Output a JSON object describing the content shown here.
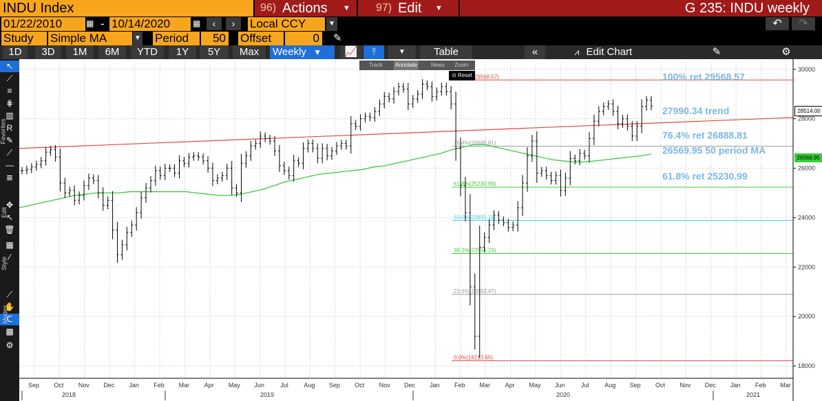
{
  "header": {
    "ticker": "INDU Index",
    "actions_num": "96)",
    "actions_label": "Actions",
    "edit_num": "97)",
    "edit_label": "Edit",
    "chart_id": "G 235: INDU weekly"
  },
  "range": {
    "start": "01/22/2010",
    "dash": "-",
    "end": "10/14/2020",
    "currency": "Local CCY"
  },
  "study": {
    "study_label": "Study",
    "study_value": "Simple MA",
    "period_label": "Period",
    "period_value": "50",
    "offset_label": "Offset",
    "offset_value": "0"
  },
  "periods": [
    "1D",
    "3D",
    "1M",
    "6M",
    "YTD",
    "1Y",
    "5Y",
    "Max"
  ],
  "frequency": "Weekly",
  "toolbar": {
    "table_label": "Table",
    "edit_chart_label": "Edit Chart"
  },
  "modes": {
    "track": "Track",
    "annotate": "Annotate",
    "news": "News",
    "zoom": "Zoom",
    "reset": "Reset"
  },
  "side_labels": {
    "favorites": "Favorites",
    "edit": "Edit",
    "style": "Style",
    "modes": "Modes"
  },
  "annotations": {
    "ret100": "100% ret 29568.57",
    "trend": "27990.34 trend",
    "ret764": "76.4% ret 26888.81",
    "ma": "26569.95 50 period MA",
    "ret618": "61.8% ret 25230.99"
  },
  "fib_labels": {
    "f100": "100.0%(29568.57)",
    "f764": "76.4%(26888.81)",
    "f618": "61.8%(25230.99)",
    "f50": "50.0%(23891.11)",
    "f382": "38.2%(22551.23)",
    "f236": "23.6%(20893.47)",
    "f0": "0.0%(18213.65)"
  },
  "price_tags": {
    "last": "28514.00",
    "ma": "26569.95"
  },
  "colors": {
    "orange": "#f7a51d",
    "red_bar": "#a01a1a",
    "blue_active": "#1e6fd8",
    "ma_line": "#3ccb3c",
    "trend_line": "#e0463c",
    "annotation": "#7ab8e6"
  },
  "chart_data": {
    "type": "bar",
    "ylim": [
      17500,
      30300
    ],
    "y_ticks": [
      18000,
      20000,
      22000,
      24000,
      26000,
      28000,
      30000
    ],
    "months": [
      "Sep",
      "Oct",
      "Nov",
      "Dec",
      "Jan",
      "Feb",
      "Mar",
      "Apr",
      "May",
      "Jun",
      "Jul",
      "Aug",
      "Sep",
      "Oct",
      "Nov",
      "Dec",
      "Jan",
      "Feb",
      "Mar",
      "Apr",
      "May",
      "Jun",
      "Jul",
      "Aug",
      "Sep",
      "Oct",
      "Nov",
      "Dec",
      "Jan",
      "Feb",
      "Mar"
    ],
    "years": [
      "2018",
      "2019",
      "2020",
      "2021"
    ],
    "fib_levels": [
      {
        "label": "100.0%",
        "value": 29568.57,
        "color": "#e0463c"
      },
      {
        "label": "76.4%",
        "value": 26888.81,
        "color": "#999999"
      },
      {
        "label": "61.8%",
        "value": 25230.99,
        "color": "#3ccb3c"
      },
      {
        "label": "50.0%",
        "value": 23891.11,
        "color": "#40d0e0"
      },
      {
        "label": "38.2%",
        "value": 22551.23,
        "color": "#3ccb3c"
      },
      {
        "label": "23.6%",
        "value": 20893.47,
        "color": "#999999"
      },
      {
        "label": "0.0%",
        "value": 18213.65,
        "color": "#e0463c"
      }
    ],
    "trend_line": {
      "start": 26800,
      "end": 28050
    },
    "last_price": 28514.0,
    "ma_value": 26569.95,
    "weekly_closes": [
      25900,
      25950,
      26050,
      26150,
      26300,
      26650,
      26750,
      26450,
      25400,
      25000,
      25100,
      24700,
      24900,
      25300,
      25600,
      25500,
      25000,
      24500,
      24700,
      23500,
      22500,
      22900,
      23400,
      23700,
      24200,
      24800,
      25200,
      25500,
      25900,
      25700,
      26000,
      26000,
      25800,
      26300,
      26200,
      26450,
      26500,
      26450,
      26300,
      26000,
      25500,
      25600,
      25700,
      26000,
      25200,
      25000,
      26200,
      26500,
      26900,
      27000,
      27300,
      27200,
      27100,
      26700,
      26100,
      25900,
      25700,
      26300,
      26200,
      26800,
      27000,
      26800,
      26400,
      26800,
      26500,
      26700,
      26900,
      27000,
      26900,
      27800,
      27700,
      28000,
      28100,
      28050,
      28300,
      28600,
      28900,
      28800,
      29100,
      29300,
      29200,
      28600,
      28800,
      29000,
      29400,
      29300,
      28900,
      29100,
      29300,
      29100,
      28600,
      26800,
      25300,
      24200,
      21200,
      19200,
      22800,
      23200,
      23700,
      24100,
      23900,
      23800,
      23600,
      23700,
      24400,
      25400,
      26500,
      27100,
      25800,
      25900,
      25700,
      25500,
      25700,
      25100,
      25600,
      26400,
      26300,
      26600,
      26500,
      27200,
      27900,
      28300,
      28500,
      28600,
      28300,
      27800,
      28000,
      27700,
      27300,
      27700,
      28500,
      28750,
      28514
    ],
    "ma_series": [
      24400,
      24500,
      24600,
      24700,
      24800,
      24900,
      24950,
      25000,
      25000,
      25000,
      25050,
      25050,
      25050,
      25050,
      25050,
      25050,
      25000,
      24950,
      24900,
      24900,
      24950,
      25050,
      25150,
      25300,
      25450,
      25550,
      25650,
      25750,
      25800,
      25850,
      25900,
      25950,
      26050,
      26100,
      26200,
      26300,
      26400,
      26500,
      26600,
      26750,
      26850,
      26950,
      26950,
      26850,
      26750,
      26650,
      26550,
      26450,
      26350,
      26300,
      26250,
      26250,
      26300,
      26350,
      26400,
      26450,
      26500,
      26570
    ]
  }
}
